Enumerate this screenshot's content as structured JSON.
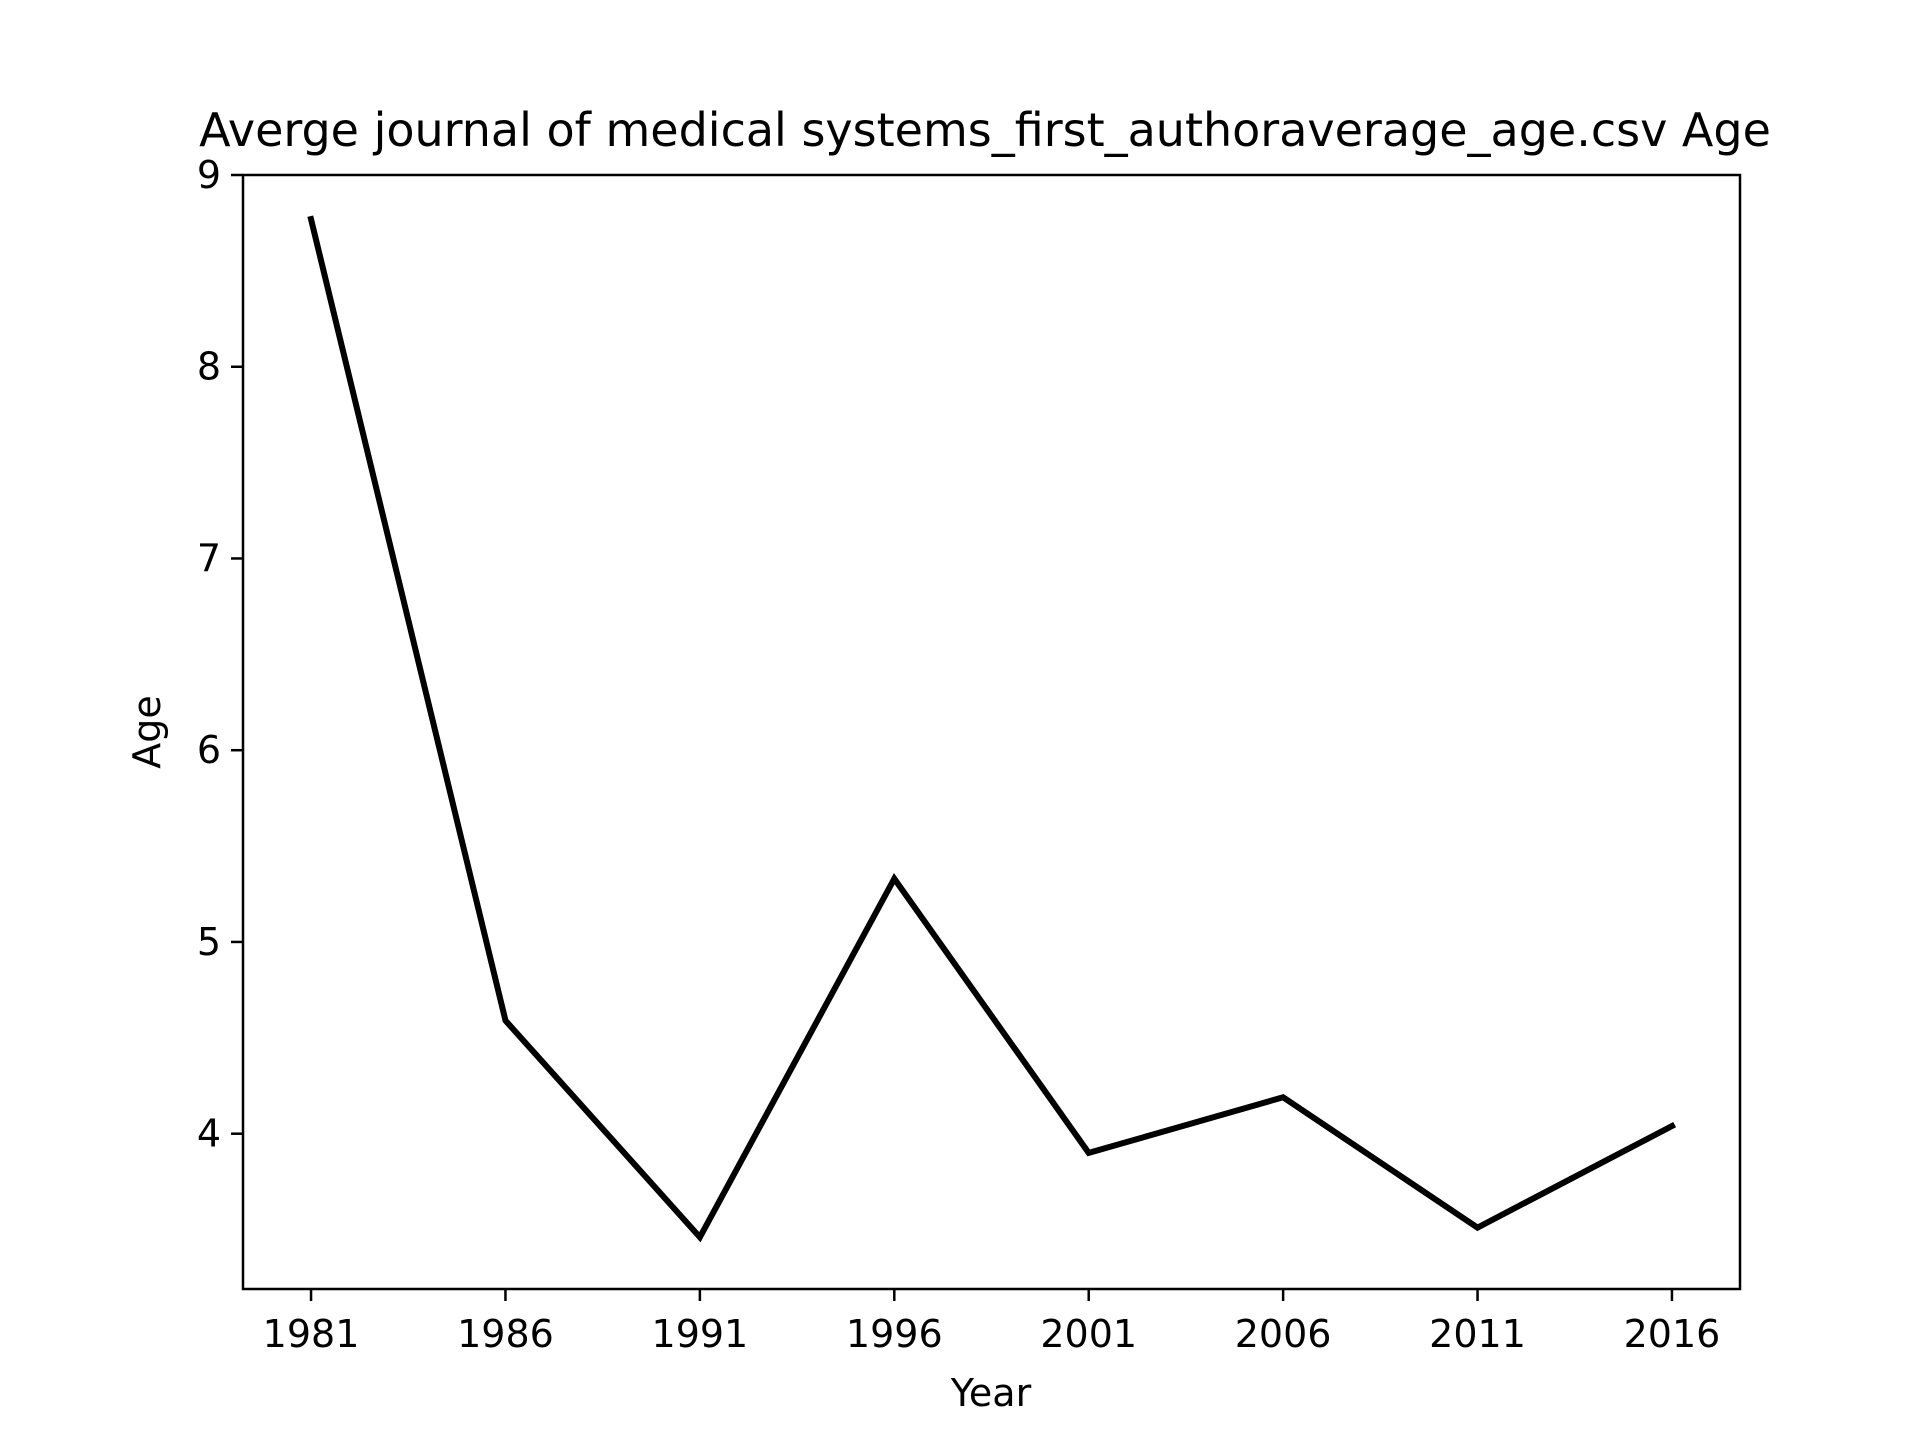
{
  "chart_data": {
    "type": "line",
    "title": "Averge journal of medical systems_first_authoraverage_age.csv Age",
    "xlabel": "Year",
    "ylabel": "Age",
    "x": [
      1981,
      1986,
      1991,
      1996,
      2001,
      2006,
      2011,
      2016
    ],
    "series": [
      {
        "values": [
          8.77,
          4.59,
          3.46,
          5.33,
          3.9,
          4.19,
          3.51,
          4.04
        ]
      }
    ],
    "xticks": [
      "1981",
      "1986",
      "1991",
      "1996",
      "2001",
      "2006",
      "2011",
      "2016"
    ],
    "yticks": [
      "4",
      "5",
      "6",
      "7",
      "8",
      "9"
    ],
    "xlim": [
      1979.25,
      2017.75
    ],
    "ylim": [
      3.19,
      9.0
    ],
    "grid": false,
    "line_color": "#000000"
  }
}
